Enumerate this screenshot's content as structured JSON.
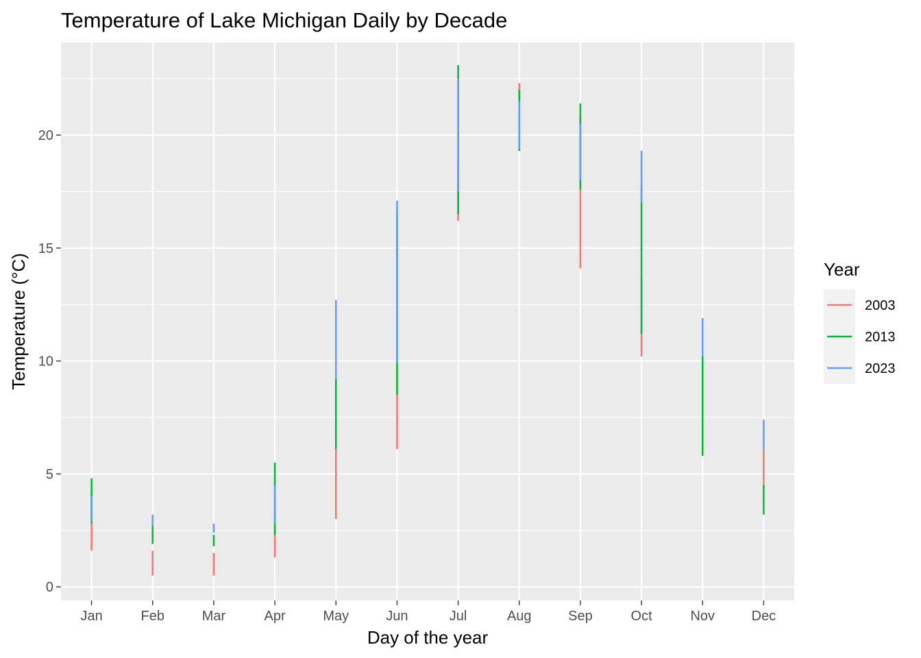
{
  "chart_data": {
    "type": "line",
    "title": "Temperature of Lake Michigan Daily by Decade",
    "xlabel": "Day of the year",
    "ylabel": "Temperature (°C)",
    "categories": [
      "Jan",
      "Feb",
      "Mar",
      "Apr",
      "May",
      "Jun",
      "Jul",
      "Aug",
      "Sep",
      "Oct",
      "Nov",
      "Dec"
    ],
    "ylim": [
      -0.6,
      24.1
    ],
    "yticks": [
      0,
      5,
      10,
      15,
      20
    ],
    "grid": true,
    "legend_title": "Year",
    "legend_position": "right",
    "series": [
      {
        "name": "2003",
        "color": "#F8766D",
        "ranges": [
          [
            1.6,
            4.1
          ],
          [
            0.5,
            1.6
          ],
          [
            0.5,
            1.5
          ],
          [
            1.3,
            3.2
          ],
          [
            3.0,
            6.1
          ],
          [
            6.1,
            15.8
          ],
          [
            16.2,
            19.0
          ],
          [
            19.3,
            22.3
          ],
          [
            14.1,
            20.9
          ],
          [
            10.2,
            13.7
          ],
          [
            6.2,
            10.1
          ],
          [
            4.4,
            6.2
          ]
        ]
      },
      {
        "name": "2013",
        "color": "#00BA38",
        "ranges": [
          [
            2.8,
            4.8
          ],
          [
            1.9,
            2.8
          ],
          [
            1.8,
            2.3
          ],
          [
            2.3,
            5.5
          ],
          [
            6.1,
            9.2
          ],
          [
            8.5,
            16.7
          ],
          [
            16.5,
            23.1
          ],
          [
            19.3,
            22.0
          ],
          [
            17.6,
            21.4
          ],
          [
            11.2,
            17.8
          ],
          [
            5.8,
            10.9
          ],
          [
            3.2,
            4.5
          ]
        ]
      },
      {
        "name": "2023",
        "color": "#619CFF",
        "ranges": [
          [
            2.9,
            4.0
          ],
          [
            2.7,
            3.2
          ],
          [
            2.4,
            2.8
          ],
          [
            2.8,
            4.5
          ],
          [
            9.2,
            12.7
          ],
          [
            9.9,
            17.1
          ],
          [
            17.5,
            22.5
          ],
          [
            19.4,
            21.5
          ],
          [
            18.0,
            20.5
          ],
          [
            17.0,
            19.3
          ],
          [
            10.2,
            11.9
          ],
          [
            6.1,
            7.4
          ]
        ]
      }
    ]
  }
}
